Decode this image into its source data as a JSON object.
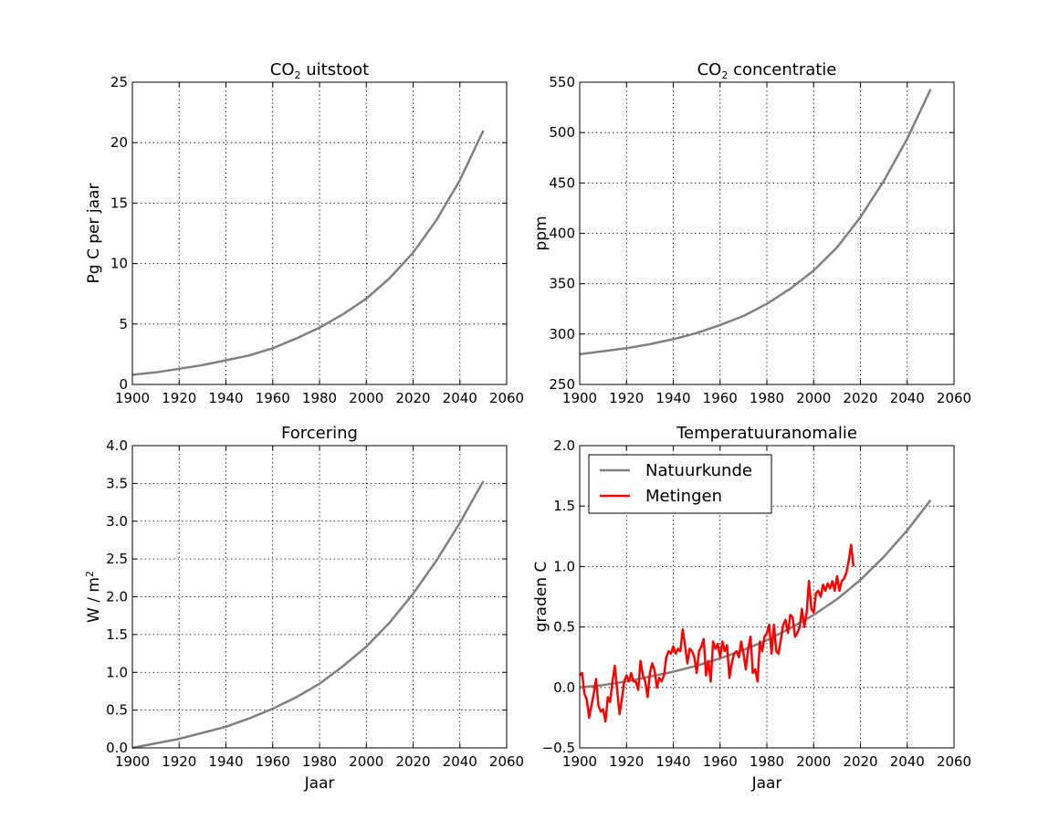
{
  "chart_data": [
    {
      "type": "line",
      "title": "CO₂ uitstoot",
      "title_main": "CO",
      "title_sub": "2",
      "title_rest": "uitstoot",
      "ylabel": "Pg C per jaar",
      "xlabel": "",
      "xlim": [
        1900,
        2060
      ],
      "ylim": [
        0,
        25
      ],
      "xticks": [
        "1900",
        "1920",
        "1940",
        "1960",
        "1980",
        "2000",
        "2020",
        "2040",
        "2060"
      ],
      "yticks": [
        "0",
        "5",
        "10",
        "15",
        "20",
        "25"
      ],
      "grid": true,
      "series": [
        {
          "color": "#808080",
          "x": [
            1900,
            1910,
            1920,
            1930,
            1940,
            1950,
            1960,
            1970,
            1980,
            1990,
            2000,
            2010,
            2020,
            2030,
            2040,
            2050
          ],
          "y": [
            0.8,
            1.0,
            1.3,
            1.6,
            2.0,
            2.4,
            3.0,
            3.8,
            4.7,
            5.8,
            7.1,
            8.8,
            10.9,
            13.6,
            16.9,
            21.0
          ]
        }
      ]
    },
    {
      "type": "line",
      "title": "CO₂ concentratie",
      "title_main": "CO",
      "title_sub": "2",
      "title_rest": "concentratie",
      "ylabel": "ppm",
      "xlabel": "",
      "xlim": [
        1900,
        2060
      ],
      "ylim": [
        250,
        550
      ],
      "xticks": [
        "1900",
        "1920",
        "1940",
        "1960",
        "1980",
        "2000",
        "2020",
        "2040",
        "2060"
      ],
      "yticks": [
        "250",
        "300",
        "350",
        "400",
        "450",
        "500",
        "550"
      ],
      "grid": true,
      "series": [
        {
          "color": "#808080",
          "x": [
            1900,
            1910,
            1920,
            1930,
            1940,
            1950,
            1960,
            1970,
            1980,
            1990,
            2000,
            2010,
            2020,
            2030,
            2040,
            2050
          ],
          "y": [
            280,
            283,
            286,
            290,
            295,
            301,
            309,
            318,
            330,
            345,
            363,
            386,
            416,
            452,
            494,
            543
          ]
        }
      ]
    },
    {
      "type": "line",
      "title": "Forcering",
      "ylabel_main": "W / m",
      "ylabel_sup": "2",
      "xlabel": "Jaar",
      "xlim": [
        1900,
        2060
      ],
      "ylim": [
        0,
        4
      ],
      "xticks": [
        "1900",
        "1920",
        "1940",
        "1960",
        "1980",
        "2000",
        "2020",
        "2040",
        "2060"
      ],
      "yticks": [
        "0.0",
        "0.5",
        "1.0",
        "1.5",
        "2.0",
        "2.5",
        "3.0",
        "3.5",
        "4.0"
      ],
      "grid": true,
      "series": [
        {
          "color": "#808080",
          "x": [
            1900,
            1910,
            1920,
            1930,
            1940,
            1950,
            1960,
            1970,
            1980,
            1990,
            2000,
            2010,
            2020,
            2030,
            2040,
            2050
          ],
          "y": [
            0.0,
            0.06,
            0.12,
            0.2,
            0.28,
            0.39,
            0.52,
            0.67,
            0.85,
            1.08,
            1.34,
            1.66,
            2.04,
            2.48,
            2.98,
            3.53
          ]
        }
      ]
    },
    {
      "type": "line",
      "title": "Temperatuuranomalie",
      "ylabel": "graden C",
      "xlabel": "Jaar",
      "xlim": [
        1900,
        2060
      ],
      "ylim": [
        -0.5,
        2.0
      ],
      "xticks": [
        "1900",
        "1920",
        "1940",
        "1960",
        "1980",
        "2000",
        "2020",
        "2040",
        "2060"
      ],
      "yticks": [
        "−0.5",
        "0.0",
        "0.5",
        "1.0",
        "1.5",
        "2.0"
      ],
      "grid": true,
      "legend_position": "top-left",
      "series": [
        {
          "name": "Natuurkunde",
          "color": "#808080",
          "x": [
            1900,
            1910,
            1920,
            1930,
            1940,
            1950,
            1960,
            1970,
            1980,
            1990,
            2000,
            2010,
            2020,
            2030,
            2040,
            2050
          ],
          "y": [
            0.0,
            0.02,
            0.05,
            0.09,
            0.13,
            0.18,
            0.24,
            0.31,
            0.39,
            0.49,
            0.6,
            0.73,
            0.89,
            1.08,
            1.3,
            1.55
          ]
        },
        {
          "name": "Metingen",
          "color": "#ff0000",
          "x": [
            1900,
            1901,
            1902,
            1903,
            1904,
            1905,
            1906,
            1907,
            1908,
            1909,
            1910,
            1911,
            1912,
            1913,
            1914,
            1915,
            1916,
            1917,
            1918,
            1919,
            1920,
            1921,
            1922,
            1923,
            1924,
            1925,
            1926,
            1927,
            1928,
            1929,
            1930,
            1931,
            1932,
            1933,
            1934,
            1935,
            1936,
            1937,
            1938,
            1939,
            1940,
            1941,
            1942,
            1943,
            1944,
            1945,
            1946,
            1947,
            1948,
            1949,
            1950,
            1951,
            1952,
            1953,
            1954,
            1955,
            1956,
            1957,
            1958,
            1959,
            1960,
            1961,
            1962,
            1963,
            1964,
            1965,
            1966,
            1967,
            1968,
            1969,
            1970,
            1971,
            1972,
            1973,
            1974,
            1975,
            1976,
            1977,
            1978,
            1979,
            1980,
            1981,
            1982,
            1983,
            1984,
            1985,
            1986,
            1987,
            1988,
            1989,
            1990,
            1991,
            1992,
            1993,
            1994,
            1995,
            1996,
            1997,
            1998,
            1999,
            2000,
            2001,
            2002,
            2003,
            2004,
            2005,
            2006,
            2007,
            2008,
            2009,
            2010,
            2011,
            2012,
            2013,
            2014,
            2015,
            2016,
            2017
          ],
          "y": [
            0.1,
            0.12,
            -0.05,
            -0.1,
            -0.25,
            -0.15,
            -0.05,
            0.07,
            -0.15,
            -0.2,
            -0.18,
            -0.28,
            -0.08,
            -0.12,
            0.05,
            0.18,
            -0.02,
            -0.22,
            -0.1,
            0.05,
            0.1,
            0.05,
            0.12,
            0.05,
            0.05,
            -0.02,
            0.22,
            0.1,
            0.05,
            -0.08,
            0.12,
            0.2,
            0.14,
            0.0,
            0.08,
            0.05,
            0.1,
            0.25,
            0.3,
            0.28,
            0.34,
            0.28,
            0.32,
            0.3,
            0.48,
            0.35,
            0.2,
            0.32,
            0.3,
            0.25,
            0.12,
            0.3,
            0.34,
            0.4,
            0.1,
            0.22,
            0.05,
            0.38,
            0.32,
            0.36,
            0.25,
            0.38,
            0.3,
            0.35,
            0.08,
            0.2,
            0.28,
            0.3,
            0.25,
            0.38,
            0.28,
            0.15,
            0.32,
            0.42,
            0.12,
            0.15,
            0.05,
            0.38,
            0.3,
            0.42,
            0.45,
            0.52,
            0.28,
            0.52,
            0.3,
            0.28,
            0.4,
            0.52,
            0.56,
            0.45,
            0.6,
            0.58,
            0.42,
            0.45,
            0.5,
            0.65,
            0.5,
            0.62,
            0.88,
            0.65,
            0.62,
            0.78,
            0.8,
            0.75,
            0.85,
            0.8,
            0.86,
            0.82,
            0.88,
            0.8,
            0.92,
            0.8,
            0.88,
            0.9,
            0.95,
            1.05,
            1.18,
            1.0
          ]
        }
      ]
    }
  ]
}
